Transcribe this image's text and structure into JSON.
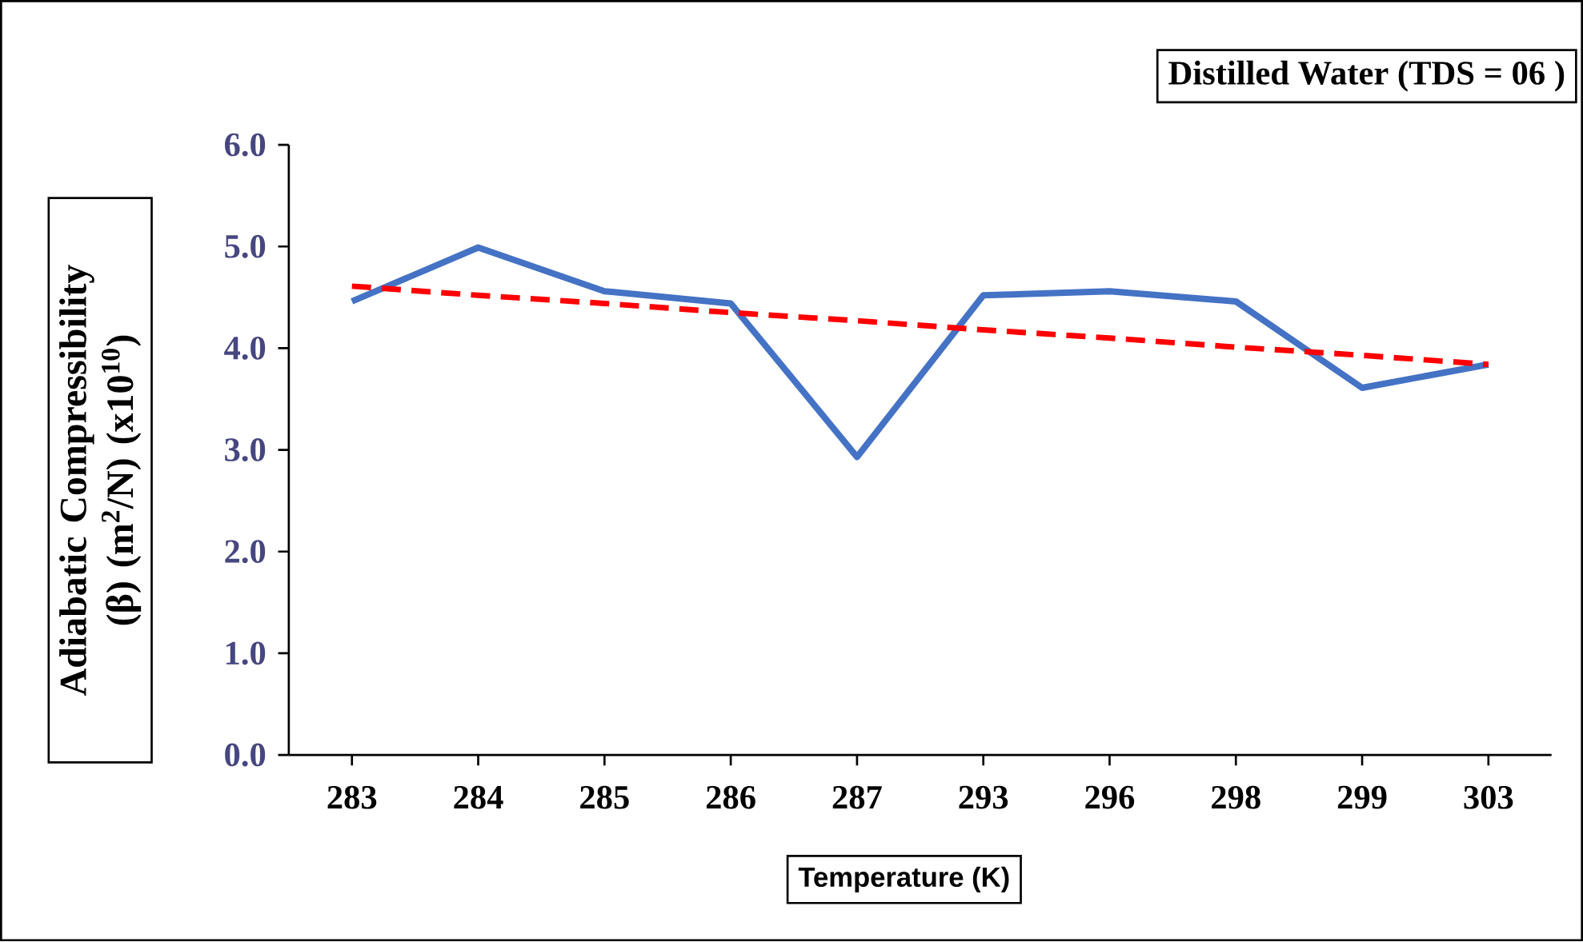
{
  "chart_data": {
    "type": "line",
    "title": "Distilled Water (TDS = 06 )",
    "xlabel": "Temperature (K)",
    "ylabel": "Adiabatic Compressibility (β) (m$^{2}$/N) (x10$^{10}$)",
    "categories": [
      "283",
      "284",
      "285",
      "286",
      "287",
      "293",
      "296",
      "298",
      "299",
      "303"
    ],
    "ylim": [
      0,
      6
    ],
    "yticks": [
      {
        "value": 0,
        "label": "0.0"
      },
      {
        "value": 1,
        "label": "1.0"
      },
      {
        "value": 2,
        "label": "2.0"
      },
      {
        "value": 3,
        "label": "3.0"
      },
      {
        "value": 4,
        "label": "4.0"
      },
      {
        "value": 5,
        "label": "5.0"
      },
      {
        "value": 6,
        "label": "6.0"
      }
    ],
    "series": [
      {
        "color": "#4472c4",
        "values": [
          4.46,
          4.99,
          4.56,
          4.44,
          2.93,
          4.52,
          4.56,
          4.46,
          3.61,
          3.84
        ]
      },
      {
        "type": "line",
        "line_style": "dashed",
        "color": "#ff0000",
        "values": [
          4.61,
          4.52,
          4.44,
          4.35,
          4.27,
          4.18,
          4.1,
          4.01,
          3.93,
          3.84
        ]
      }
    ]
  }
}
